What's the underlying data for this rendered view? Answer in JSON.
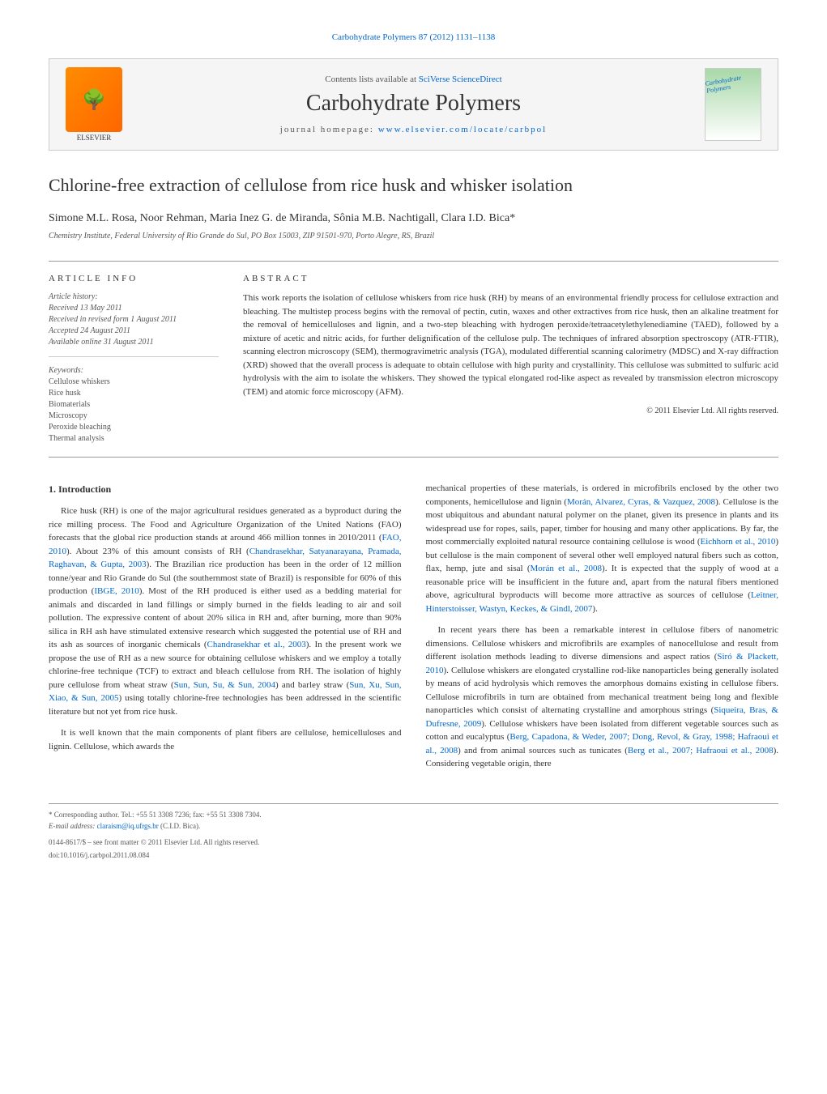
{
  "header": {
    "citation": "Carbohydrate Polymers 87 (2012) 1131–1138"
  },
  "banner": {
    "publisher": "ELSEVIER",
    "contents_prefix": "Contents lists available at ",
    "contents_link": "SciVerse ScienceDirect",
    "journal_name": "Carbohydrate Polymers",
    "homepage_prefix": "journal homepage: ",
    "homepage_link": "www.elsevier.com/locate/carbpol",
    "cover_text": "Carbohydrate Polymers"
  },
  "article": {
    "title": "Chlorine-free extraction of cellulose from rice husk and whisker isolation",
    "authors": "Simone M.L. Rosa, Noor Rehman, Maria Inez G. de Miranda, Sônia M.B. Nachtigall, Clara I.D. Bica*",
    "affiliation": "Chemistry Institute, Federal University of Rio Grande do Sul, PO Box 15003, ZIP 91501-970, Porto Alegre, RS, Brazil"
  },
  "info": {
    "heading": "ARTICLE INFO",
    "history_label": "Article history:",
    "received": "Received 13 May 2011",
    "revised": "Received in revised form 1 August 2011",
    "accepted": "Accepted 24 August 2011",
    "available": "Available online 31 August 2011",
    "keywords_label": "Keywords:",
    "keywords": [
      "Cellulose whiskers",
      "Rice husk",
      "Biomaterials",
      "Microscopy",
      "Peroxide bleaching",
      "Thermal analysis"
    ]
  },
  "abstract": {
    "heading": "ABSTRACT",
    "text": "This work reports the isolation of cellulose whiskers from rice husk (RH) by means of an environmental friendly process for cellulose extraction and bleaching. The multistep process begins with the removal of pectin, cutin, waxes and other extractives from rice husk, then an alkaline treatment for the removal of hemicelluloses and lignin, and a two-step bleaching with hydrogen peroxide/tetraacetylethylenediamine (TAED), followed by a mixture of acetic and nitric acids, for further delignification of the cellulose pulp. The techniques of infrared absorption spectroscopy (ATR-FTIR), scanning electron microscopy (SEM), thermogravimetric analysis (TGA), modulated differential scanning calorimetry (MDSC) and X-ray diffraction (XRD) showed that the overall process is adequate to obtain cellulose with high purity and crystallinity. This cellulose was submitted to sulfuric acid hydrolysis with the aim to isolate the whiskers. They showed the typical elongated rod-like aspect as revealed by transmission electron microscopy (TEM) and atomic force microscopy (AFM).",
    "copyright": "© 2011 Elsevier Ltd. All rights reserved."
  },
  "body": {
    "section1_heading": "1. Introduction",
    "left_p1_a": "Rice husk (RH) is one of the major agricultural residues generated as a byproduct during the rice milling process. The Food and Agriculture Organization of the United Nations (FAO) forecasts that the global rice production stands at around 466 million tonnes in 2010/2011 (",
    "left_p1_ref1": "FAO, 2010",
    "left_p1_b": "). About 23% of this amount consists of RH (",
    "left_p1_ref2": "Chandrasekhar, Satyanarayana, Pramada, Raghavan, & Gupta, 2003",
    "left_p1_c": "). The Brazilian rice production has been in the order of 12 million tonne/year and Rio Grande do Sul (the southernmost state of Brazil) is responsible for 60% of this production (",
    "left_p1_ref3": "IBGE, 2010",
    "left_p1_d": "). Most of the RH produced is either used as a bedding material for animals and discarded in land fillings or simply burned in the fields leading to air and soil pollution. The expressive content of about 20% silica in RH and, after burning, more than 90% silica in RH ash have stimulated extensive research which suggested the potential use of RH and its ash as sources of inorganic chemicals (",
    "left_p1_ref4": "Chandrasekhar et al., 2003",
    "left_p1_e": "). In the present work we propose the use of RH as a new source for obtaining cellulose whiskers and we employ a totally chlorine-free technique (TCF) to extract and bleach cellulose from RH. The isolation of highly pure cellulose from wheat straw (",
    "left_p1_ref5": "Sun, Sun, Su, & Sun, 2004",
    "left_p1_f": ") and barley straw (",
    "left_p1_ref6": "Sun, Xu, Sun, Xiao, & Sun, 2005",
    "left_p1_g": ") using totally chlorine-free technologies has been addressed in the scientific literature but not yet from rice husk.",
    "left_p2": "It is well known that the main components of plant fibers are cellulose, hemicelluloses and lignin. Cellulose, which awards the",
    "right_p1_a": "mechanical properties of these materials, is ordered in microfibrils enclosed by the other two components, hemicellulose and lignin (",
    "right_p1_ref1": "Morán, Alvarez, Cyras, & Vazquez, 2008",
    "right_p1_b": "). Cellulose is the most ubiquitous and abundant natural polymer on the planet, given its presence in plants and its widespread use for ropes, sails, paper, timber for housing and many other applications. By far, the most commercially exploited natural resource containing cellulose is wood (",
    "right_p1_ref2": "Eichhorn et al., 2010",
    "right_p1_c": ") but cellulose is the main component of several other well employed natural fibers such as cotton, flax, hemp, jute and sisal (",
    "right_p1_ref3": "Morán et al., 2008",
    "right_p1_d": "). It is expected that the supply of wood at a reasonable price will be insufficient in the future and, apart from the natural fibers mentioned above, agricultural byproducts will become more attractive as sources of cellulose (",
    "right_p1_ref4": "Leitner, Hinterstoisser, Wastyn, Keckes, & Gindl, 2007",
    "right_p1_e": ").",
    "right_p2_a": "In recent years there has been a remarkable interest in cellulose fibers of nanometric dimensions. Cellulose whiskers and microfibrils are examples of nanocellulose and result from different isolation methods leading to diverse dimensions and aspect ratios (",
    "right_p2_ref1": "Siró & Plackett, 2010",
    "right_p2_b": "). Cellulose whiskers are elongated crystalline rod-like nanoparticles being generally isolated by means of acid hydrolysis which removes the amorphous domains existing in cellulose fibers. Cellulose microfibrils in turn are obtained from mechanical treatment being long and flexible nanoparticles which consist of alternating crystalline and amorphous strings (",
    "right_p2_ref2": "Siqueira, Bras, & Dufresne, 2009",
    "right_p2_c": "). Cellulose whiskers have been isolated from different vegetable sources such as cotton and eucalyptus (",
    "right_p2_ref3": "Berg, Capadona, & Weder, 2007; Dong, Revol, & Gray, 1998; Hafraoui et al., 2008",
    "right_p2_d": ") and from animal sources such as tunicates (",
    "right_p2_ref4": "Berg et al., 2007; Hafraoui et al., 2008",
    "right_p2_e": "). Considering vegetable origin, there"
  },
  "footer": {
    "corresponding": "* Corresponding author. Tel.: +55 51 3308 7236; fax: +55 51 3308 7304.",
    "email_label": "E-mail address: ",
    "email": "claraism@iq.ufrgs.br",
    "email_suffix": " (C.I.D. Bica).",
    "issn": "0144-8617/$ – see front matter © 2011 Elsevier Ltd. All rights reserved.",
    "doi": "doi:10.1016/j.carbpol.2011.08.084"
  },
  "colors": {
    "link": "#0066cc",
    "text": "#333333",
    "muted": "#555555",
    "border": "#999999",
    "banner_bg": "#f5f5f5"
  }
}
